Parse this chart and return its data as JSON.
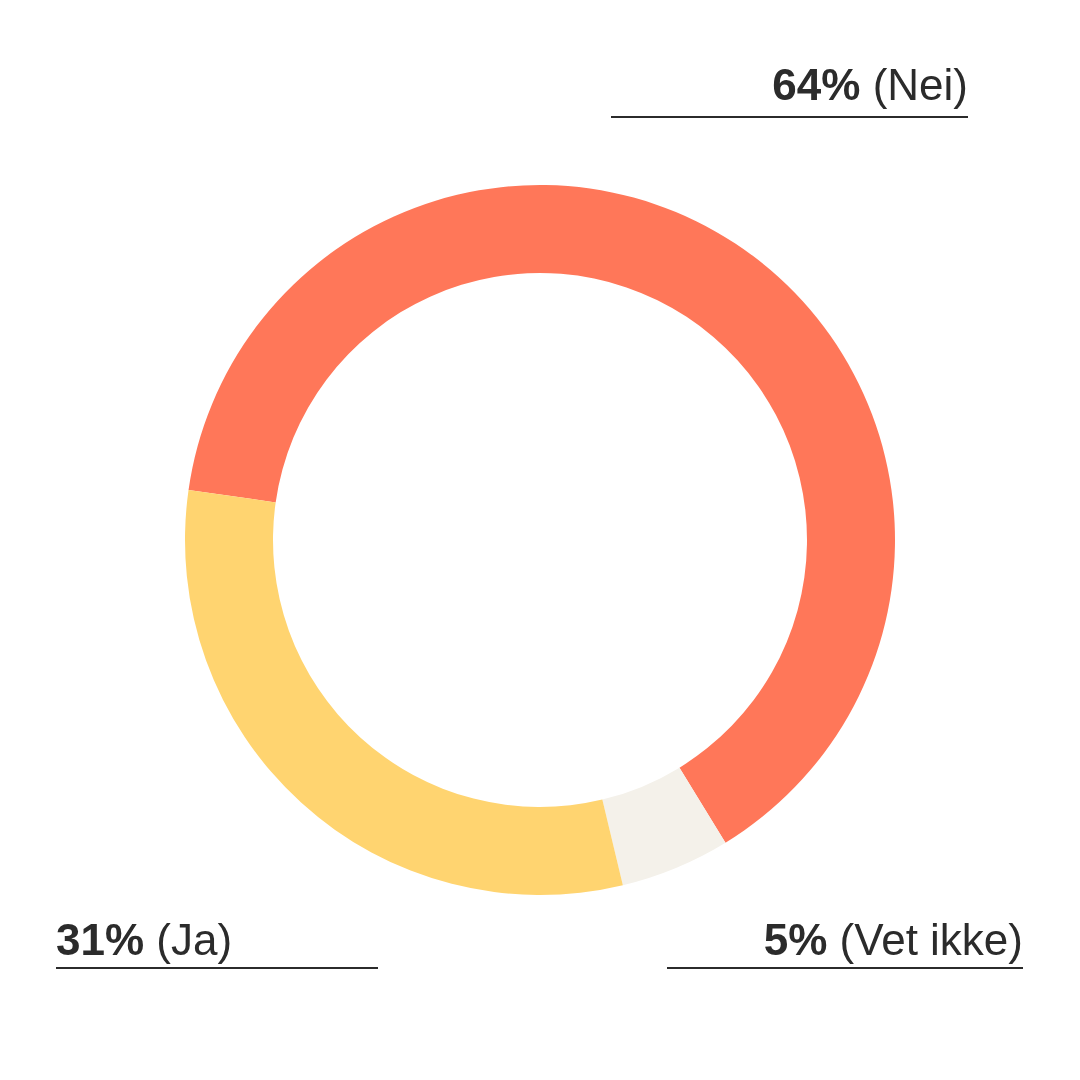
{
  "chart_data": {
    "type": "donut",
    "categories": [
      "(Nei)",
      "(Vet ikke)",
      "(Ja)"
    ],
    "values": [
      64,
      5,
      31
    ],
    "value_labels": [
      "64%",
      "5%",
      "31%"
    ],
    "colors": [
      "#ff7759",
      "#f4f1ea",
      "#ffd470"
    ],
    "legend": false
  }
}
